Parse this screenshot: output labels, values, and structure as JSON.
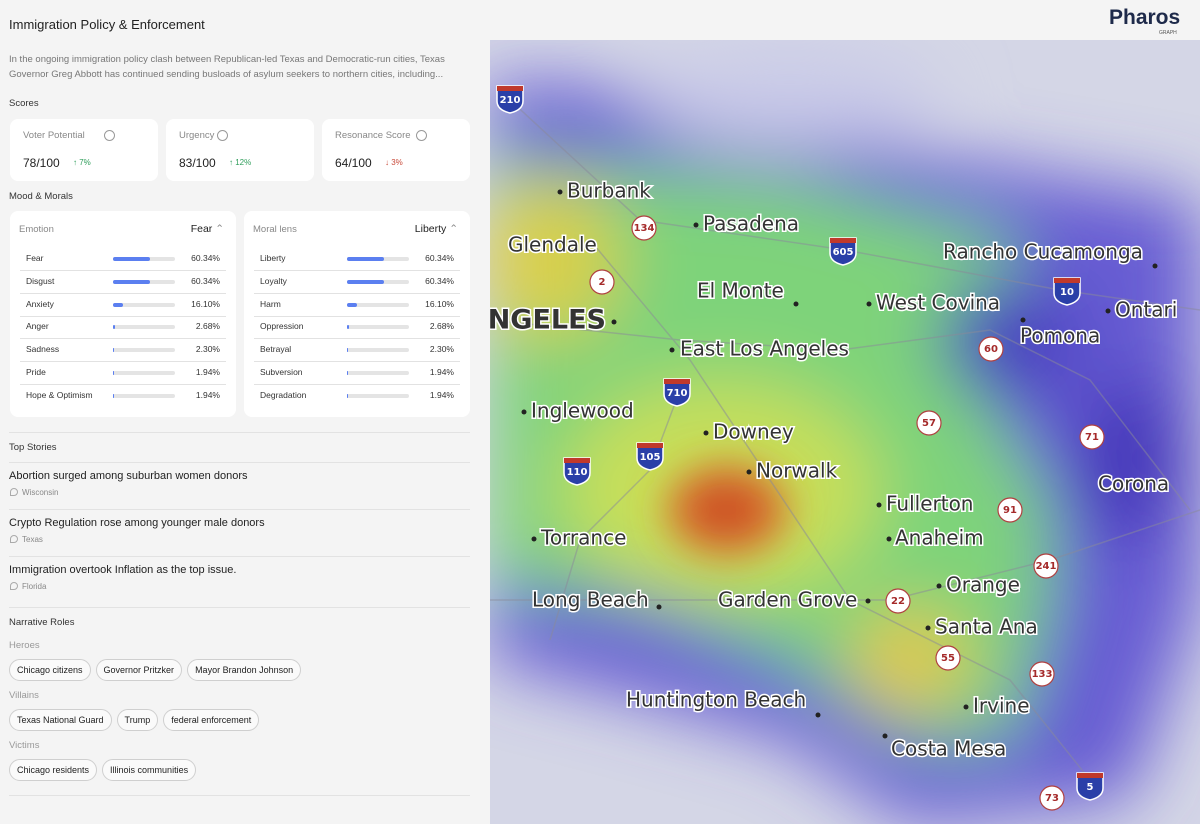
{
  "header": {
    "title": "Immigration Policy & Enforcement",
    "logo": "Pharos",
    "logo_sub": "GRAPH"
  },
  "summary": "In the ongoing immigration policy clash between Republican-led Texas and Democratic-run cities, Texas Governor Greg Abbott has continued sending busloads of asylum seekers to northern cities, including...",
  "scores": {
    "title": "Scores",
    "cards": [
      {
        "label": "Voter Potential",
        "value": "78/100",
        "change": "↑ 7%",
        "direction": "up"
      },
      {
        "label": "Urgency",
        "value": "83/100",
        "change": "↑ 12%",
        "direction": "up"
      },
      {
        "label": "Resonance Score",
        "value": "64/100",
        "change": "↓ 3%",
        "direction": "down"
      }
    ]
  },
  "mood": {
    "title": "Mood & Morals",
    "panels": [
      {
        "label": "Emotion",
        "selected": "Fear",
        "rows": [
          {
            "name": "Fear",
            "value": "60.34%"
          },
          {
            "name": "Disgust",
            "value": "60.34%"
          },
          {
            "name": "Anxiety",
            "value": "16.10%"
          },
          {
            "name": "Anger",
            "value": "2.68%"
          },
          {
            "name": "Sadness",
            "value": "2.30%"
          },
          {
            "name": "Pride",
            "value": "1.94%"
          },
          {
            "name": "Hope & Optimism",
            "value": "1.94%"
          }
        ]
      },
      {
        "label": "Moral lens",
        "selected": "Liberty",
        "rows": [
          {
            "name": "Liberty",
            "value": "60.34%"
          },
          {
            "name": "Loyalty",
            "value": "60.34%"
          },
          {
            "name": "Harm",
            "value": "16.10%"
          },
          {
            "name": "Oppression",
            "value": "2.68%"
          },
          {
            "name": "Betrayal",
            "value": "2.30%"
          },
          {
            "name": "Subversion",
            "value": "1.94%"
          },
          {
            "name": "Degradation",
            "value": "1.94%"
          }
        ]
      }
    ]
  },
  "top_stories": {
    "title": "Top Stories",
    "items": [
      {
        "headline": "Abortion surged among suburban women donors",
        "location": "Wisconsin"
      },
      {
        "headline": "Crypto Regulation rose among younger male donors",
        "location": "Texas"
      },
      {
        "headline": "Immigration overtook Inflation as the top issue.",
        "location": "Florida"
      }
    ]
  },
  "narrative_roles": {
    "title": "Narrative Roles",
    "groups": [
      {
        "label": "Heroes",
        "tags": [
          "Chicago citizens",
          "Governor Pritzker",
          "Mayor Brandon Johnson"
        ]
      },
      {
        "label": "Villains",
        "tags": [
          "Texas National Guard",
          "Trump",
          "federal enforcement"
        ]
      },
      {
        "label": "Victims",
        "tags": [
          "Chicago residents",
          "Illinois communities"
        ]
      }
    ]
  },
  "map": {
    "cities": [
      "Burbank",
      "Glendale",
      "Pasadena",
      "ANGELES",
      "El Monte",
      "West Covina",
      "Rancho Cucamonga",
      "Pomona",
      "Ontari",
      "East Los Angeles",
      "Inglewood",
      "Downey",
      "Norwalk",
      "Fullerton",
      "Anaheim",
      "Torrance",
      "Corona",
      "Long Beach",
      "Garden Grove",
      "Orange",
      "Santa Ana",
      "Huntington Beach",
      "Irvine",
      "Costa Mesa"
    ],
    "state_routes": [
      "134",
      "2",
      "60",
      "57",
      "71",
      "91",
      "241",
      "22",
      "55",
      "133",
      "73"
    ],
    "interstates": [
      "210",
      "605",
      "10",
      "710",
      "105",
      "110",
      "5"
    ]
  }
}
